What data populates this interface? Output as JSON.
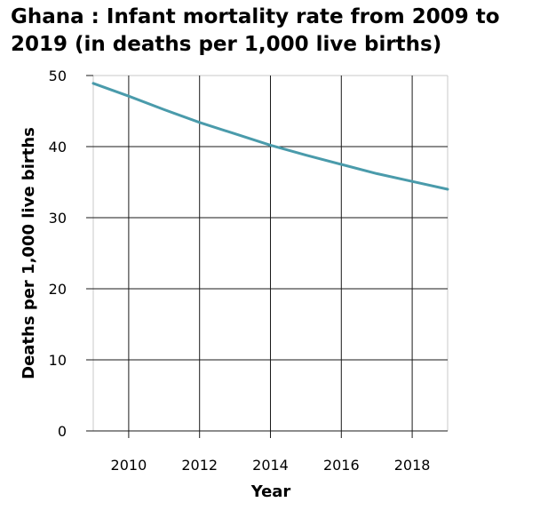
{
  "colors": {
    "line": "#4a9bab",
    "grid": "#1a1a1a",
    "frame": "#c8c8c8",
    "background": "#ffffff"
  },
  "chart_data": {
    "type": "line",
    "title": "Ghana : Infant mortality rate from 2009 to 2019 (in deaths per 1,000 live births)",
    "xlabel": "Year",
    "ylabel": "Deaths per 1,000 live births",
    "xlim": [
      2009,
      2019
    ],
    "ylim": [
      0,
      50
    ],
    "xticks": [
      2010,
      2012,
      2014,
      2016,
      2018
    ],
    "yticks": [
      0,
      10,
      20,
      30,
      40,
      50
    ],
    "grid": true,
    "x": [
      2009,
      2010,
      2011,
      2012,
      2013,
      2014,
      2015,
      2016,
      2017,
      2018,
      2019
    ],
    "series": [
      {
        "values": [
          48.9,
          47.1,
          45.2,
          43.4,
          41.8,
          40.2,
          38.8,
          37.5,
          36.2,
          35.1,
          34.0
        ]
      }
    ]
  }
}
